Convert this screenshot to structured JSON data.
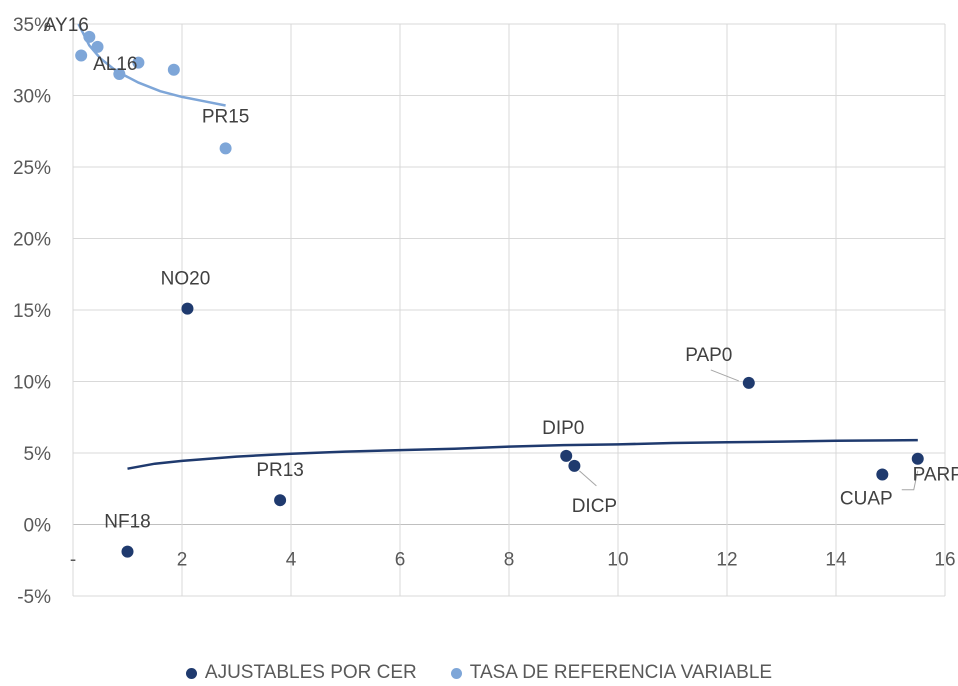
{
  "chart_data": {
    "type": "scatter",
    "title": "",
    "xlabel": "",
    "ylabel": "",
    "xlim": [
      0,
      16
    ],
    "ylim": [
      -5,
      35
    ],
    "x_ticks": [
      0,
      2,
      4,
      6,
      8,
      10,
      12,
      14,
      16
    ],
    "x_tick_labels": [
      "-",
      "2",
      "4",
      "6",
      "8",
      "10",
      "12",
      "14",
      "16"
    ],
    "y_ticks": [
      -5,
      0,
      5,
      10,
      15,
      20,
      25,
      30,
      35
    ],
    "y_tick_labels": [
      "-5%",
      "0%",
      "5%",
      "10%",
      "15%",
      "20%",
      "25%",
      "30%",
      "35%"
    ],
    "grid": true,
    "legend_position": "bottom",
    "series": [
      {
        "name": "AJUSTABLES POR CER",
        "color": "#1f3a6e",
        "points": [
          {
            "x": 1.0,
            "y": -1.9,
            "label": "NF18"
          },
          {
            "x": 2.1,
            "y": 15.1,
            "label": "NO20"
          },
          {
            "x": 3.8,
            "y": 1.7,
            "label": "PR13"
          },
          {
            "x": 9.05,
            "y": 4.8,
            "label": "DIP0"
          },
          {
            "x": 9.2,
            "y": 4.1,
            "label": "DICP"
          },
          {
            "x": 12.4,
            "y": 9.9,
            "label": "PAP0"
          },
          {
            "x": 14.85,
            "y": 3.5,
            "label": "CUAP"
          },
          {
            "x": 15.5,
            "y": 4.6,
            "label": "PARP"
          }
        ],
        "trendline": [
          [
            1.0,
            3.9
          ],
          [
            1.5,
            4.25
          ],
          [
            2.0,
            4.45
          ],
          [
            3.0,
            4.75
          ],
          [
            4.0,
            4.95
          ],
          [
            5.0,
            5.1
          ],
          [
            6.0,
            5.2
          ],
          [
            7.0,
            5.3
          ],
          [
            8.0,
            5.45
          ],
          [
            9.0,
            5.55
          ],
          [
            10.0,
            5.6
          ],
          [
            11.0,
            5.7
          ],
          [
            12.0,
            5.75
          ],
          [
            13.0,
            5.8
          ],
          [
            14.0,
            5.85
          ],
          [
            15.5,
            5.9
          ]
        ]
      },
      {
        "name": "TASA DE REFERENCIA VARIABLE",
        "color": "#7ea6d8",
        "points": [
          {
            "x": 0.15,
            "y": 32.8,
            "label": ""
          },
          {
            "x": 0.3,
            "y": 34.1,
            "label": "AY16"
          },
          {
            "x": 0.45,
            "y": 33.4,
            "label": ""
          },
          {
            "x": 0.85,
            "y": 31.5,
            "label": "AL16"
          },
          {
            "x": 1.2,
            "y": 32.3,
            "label": ""
          },
          {
            "x": 1.85,
            "y": 31.8,
            "label": ""
          },
          {
            "x": 2.8,
            "y": 26.3,
            "label": "PR15"
          }
        ],
        "trendline": [
          [
            0.1,
            35.0
          ],
          [
            0.3,
            33.5
          ],
          [
            0.5,
            32.6
          ],
          [
            0.8,
            31.7
          ],
          [
            1.2,
            30.9
          ],
          [
            1.6,
            30.3
          ],
          [
            2.0,
            29.9
          ],
          [
            2.4,
            29.6
          ],
          [
            2.8,
            29.3
          ]
        ]
      }
    ]
  }
}
